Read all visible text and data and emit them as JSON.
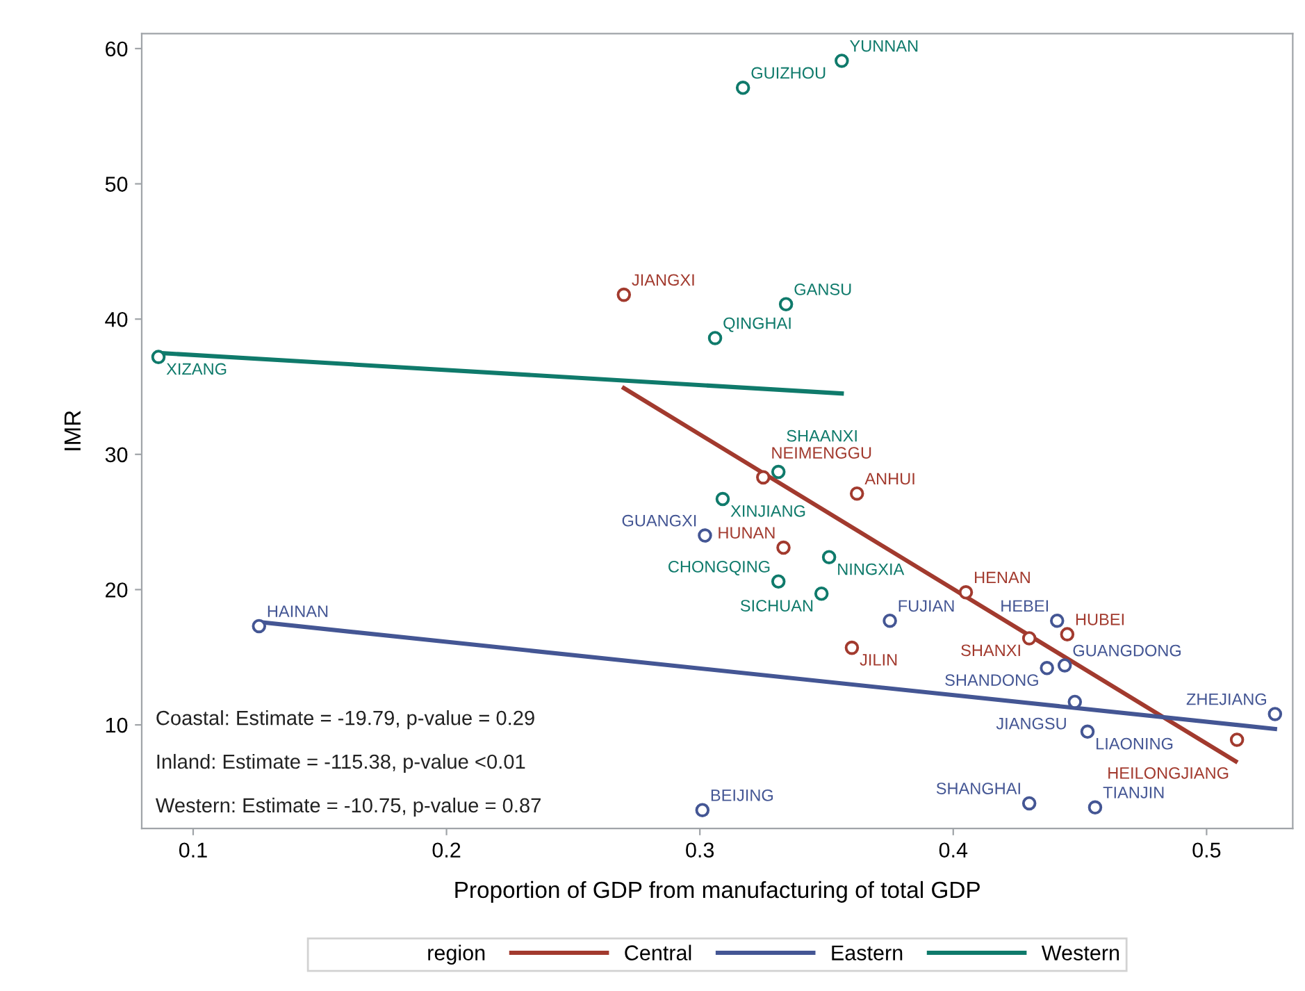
{
  "chart_data": {
    "type": "scatter",
    "xlabel": "Proportion of GDP from manufacturing of total GDP",
    "ylabel": "IMR",
    "legend_title": "region",
    "legend": "bottom",
    "grid": false,
    "xlim": [
      0.0797,
      0.534
    ],
    "xticks": [
      0.1,
      0.2,
      0.3,
      0.4,
      0.5
    ],
    "ylim": [
      2.34,
      61.1
    ],
    "yticks": [
      10,
      20,
      30,
      40,
      50,
      60
    ],
    "series": [
      {
        "type": "scatter",
        "marker": "circle",
        "color": "#a23a2e",
        "x": [
          0.27,
          0.325,
          0.362,
          0.333,
          0.405,
          0.43,
          0.445,
          0.36,
          0.512
        ],
        "values": [
          41.8,
          28.3,
          27.1,
          23.1,
          19.8,
          16.4,
          16.7,
          15.7,
          8.9
        ]
      },
      {
        "type": "scatter",
        "marker": "circle",
        "color": "#445694",
        "x": [
          0.126,
          0.302,
          0.375,
          0.441,
          0.444,
          0.437,
          0.448,
          0.453,
          0.527,
          0.301,
          0.43,
          0.456
        ],
        "values": [
          17.3,
          24.0,
          17.7,
          17.7,
          14.4,
          14.2,
          11.7,
          9.5,
          10.8,
          3.7,
          4.2,
          3.9
        ]
      },
      {
        "type": "scatter",
        "marker": "circle",
        "color": "#0f7a6b",
        "x": [
          0.0863,
          0.317,
          0.356,
          0.334,
          0.306,
          0.331,
          0.309,
          0.351,
          0.331,
          0.348
        ],
        "values": [
          37.2,
          57.1,
          59.1,
          41.1,
          38.6,
          28.7,
          26.7,
          22.4,
          20.6,
          19.7
        ]
      },
      {
        "type": "line",
        "marker": "none",
        "name": "Central",
        "color": "#a23a2e",
        "x": [
          0.27,
          0.5115
        ],
        "values": [
          34.9,
          7.3
        ]
      },
      {
        "type": "line",
        "marker": "none",
        "name": "Eastern",
        "color": "#445694",
        "x": [
          0.126,
          0.527
        ],
        "values": [
          17.6,
          9.7
        ]
      },
      {
        "type": "line",
        "marker": "none",
        "name": "Western",
        "color": "#0f7a6b",
        "x": [
          0.0863,
          0.356
        ],
        "values": [
          37.5,
          34.5
        ]
      }
    ],
    "annotations": [
      {
        "text": "JIANGXI",
        "x": 0.27,
        "y": 41.8
      },
      {
        "text": "NEIMENGGU",
        "x": 0.325,
        "y": 28.3
      },
      {
        "text": "ANHUI",
        "x": 0.362,
        "y": 27.1
      },
      {
        "text": "HUNAN",
        "x": 0.333,
        "y": 23.1
      },
      {
        "text": "HENAN",
        "x": 0.405,
        "y": 19.8
      },
      {
        "text": "SHANXI",
        "x": 0.43,
        "y": 16.4
      },
      {
        "text": "HUBEI",
        "x": 0.445,
        "y": 16.7
      },
      {
        "text": "JILIN",
        "x": 0.36,
        "y": 15.7
      },
      {
        "text": "HEILONGJIANG",
        "x": 0.512,
        "y": 8.9
      },
      {
        "text": "HAINAN",
        "x": 0.126,
        "y": 17.3
      },
      {
        "text": "GUANGXI",
        "x": 0.302,
        "y": 24.0
      },
      {
        "text": "FUJIAN",
        "x": 0.375,
        "y": 17.7
      },
      {
        "text": "HEBEI",
        "x": 0.441,
        "y": 17.7
      },
      {
        "text": "GUANGDONG",
        "x": 0.444,
        "y": 14.4
      },
      {
        "text": "SHANDONG",
        "x": 0.437,
        "y": 14.2
      },
      {
        "text": "JIANGSU",
        "x": 0.448,
        "y": 11.7
      },
      {
        "text": "LIAONING",
        "x": 0.453,
        "y": 9.5
      },
      {
        "text": "ZHEJIANG",
        "x": 0.527,
        "y": 10.8
      },
      {
        "text": "BEIJING",
        "x": 0.301,
        "y": 3.7
      },
      {
        "text": "SHANGHAI",
        "x": 0.43,
        "y": 4.2
      },
      {
        "text": "TIANJIN",
        "x": 0.456,
        "y": 3.9
      },
      {
        "text": "XIZANG",
        "x": 0.0863,
        "y": 37.2
      },
      {
        "text": "GUIZHOU",
        "x": 0.317,
        "y": 57.1
      },
      {
        "text": "YUNNAN",
        "x": 0.356,
        "y": 59.1
      },
      {
        "text": "GANSU",
        "x": 0.334,
        "y": 41.1
      },
      {
        "text": "QINGHAI",
        "x": 0.306,
        "y": 38.6
      },
      {
        "text": "SHAANXI",
        "x": 0.331,
        "y": 28.7
      },
      {
        "text": "XINJIANG",
        "x": 0.309,
        "y": 26.7
      },
      {
        "text": "NINGXIA",
        "x": 0.351,
        "y": 22.4
      },
      {
        "text": "CHONGQING",
        "x": 0.331,
        "y": 20.6
      },
      {
        "text": "SICHUAN",
        "x": 0.348,
        "y": 19.7
      },
      "Coastal: Estimate = -19.79, p-value = 0.29",
      "Inland: Estimate = -115.38, p-value <0.01",
      "Western: Estimate = -10.75, p-value = 0.87"
    ]
  }
}
